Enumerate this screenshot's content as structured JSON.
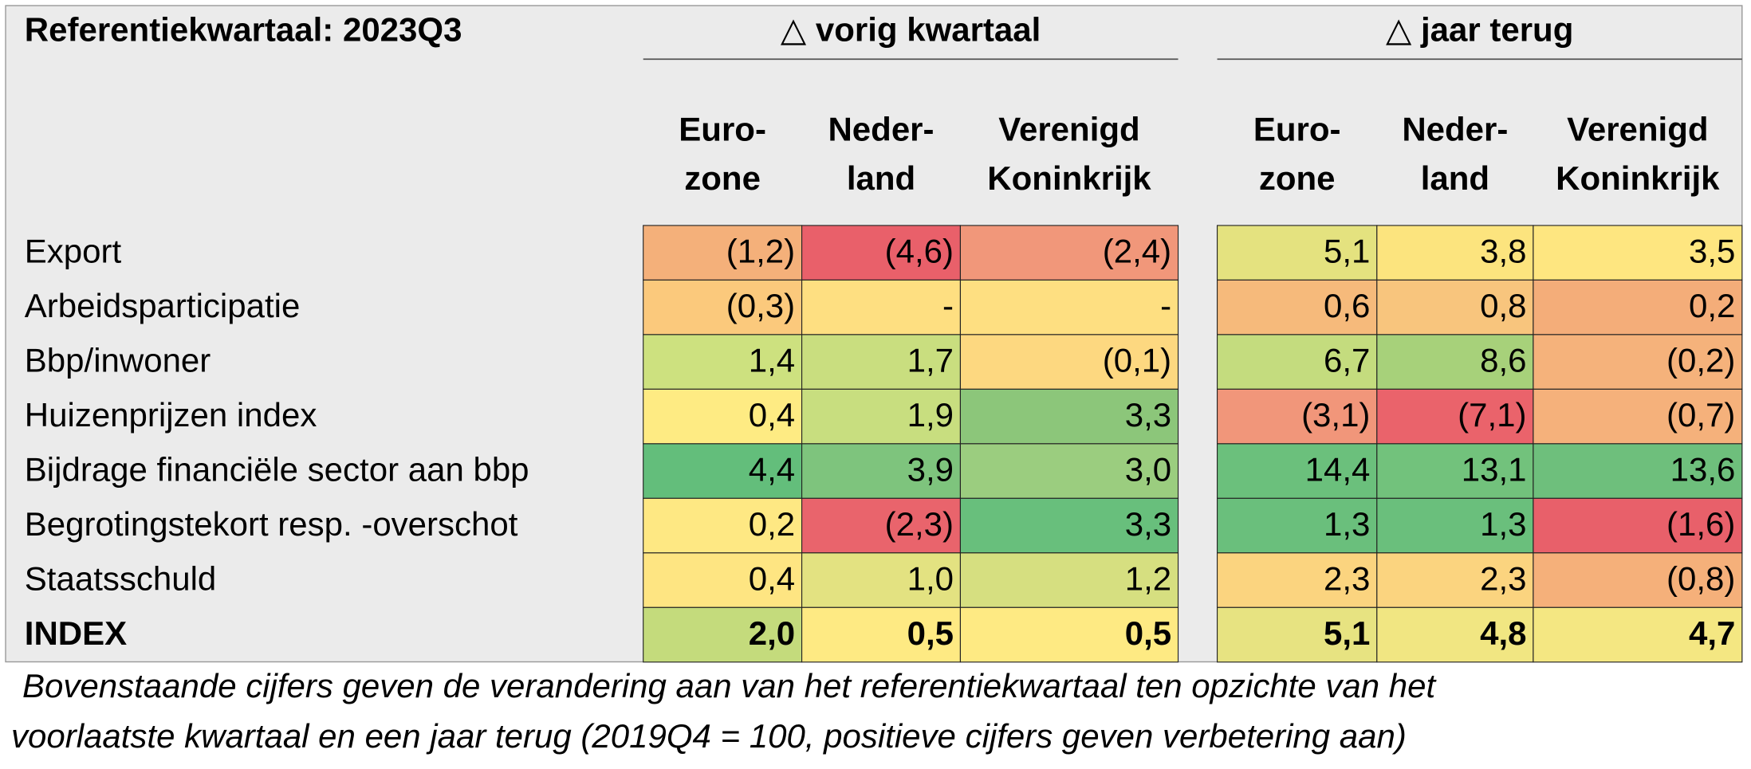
{
  "header": {
    "title": "Referentiekwartaal: 2023Q3"
  },
  "table": {
    "groups": [
      {
        "label": "△ vorig kwartaal",
        "columns": [
          [
            "Euro-",
            "zone"
          ],
          [
            "Neder-",
            "land"
          ],
          [
            "Verenigd",
            "Koninkrijk"
          ]
        ]
      },
      {
        "label": "△ jaar terug",
        "columns": [
          [
            "Euro-",
            "zone"
          ],
          [
            "Neder-",
            "land"
          ],
          [
            "Verenigd",
            "Koninkrijk"
          ]
        ]
      }
    ],
    "rows": [
      {
        "label": "Export",
        "cells": [
          "(1,2)",
          "(4,6)",
          "(2,4)",
          "5,1",
          "3,8",
          "3,5"
        ]
      },
      {
        "label": "Arbeidsparticipatie",
        "cells": [
          "(0,3)",
          "-",
          "-",
          "0,6",
          "0,8",
          "0,2"
        ]
      },
      {
        "label": "Bbp/inwoner",
        "cells": [
          "1,4",
          "1,7",
          "(0,1)",
          "6,7",
          "8,6",
          "(0,2)"
        ]
      },
      {
        "label": "Huizenprijzen index",
        "cells": [
          "0,4",
          "1,9",
          "3,3",
          "(3,1)",
          "(7,1)",
          "(0,7)"
        ]
      },
      {
        "label": "Bijdrage financiële sector aan bbp",
        "cells": [
          "4,4",
          "3,9",
          "3,0",
          "14,4",
          "13,1",
          "13,6"
        ]
      },
      {
        "label": "Begrotingstekort resp. -overschot",
        "cells": [
          "0,2",
          "(2,3)",
          "3,3",
          "1,3",
          "1,3",
          "(1,6)"
        ]
      },
      {
        "label": "Staatsschuld",
        "cells": [
          "0,4",
          "1,0",
          "1,2",
          "2,3",
          "2,3",
          "(0,8)"
        ]
      },
      {
        "label": "INDEX",
        "cells": [
          "2,0",
          "0,5",
          "0,5",
          "5,1",
          "4,8",
          "4,7"
        ]
      }
    ]
  },
  "caption": {
    "lines": [
      "Bovenstaande cijfers geven de verandering aan van het referentiekwartaal ten opzichte van het",
      "voorlaatste kwartaal en een jaar terug (2019Q4 = 100, positieve cijfers geven verbetering aan)"
    ]
  }
}
